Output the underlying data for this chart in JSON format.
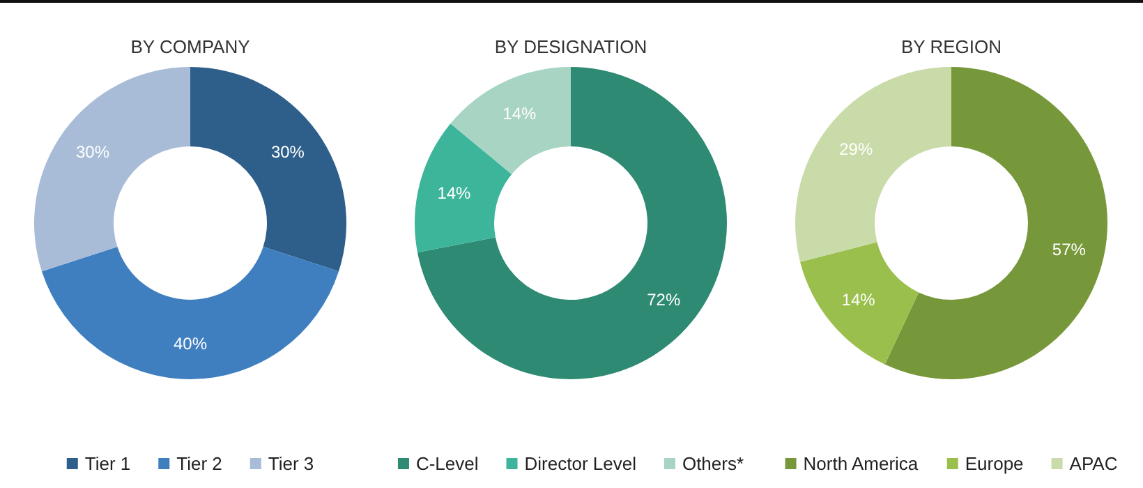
{
  "chart_data": [
    {
      "type": "donut",
      "title": "BY COMPANY",
      "categories": [
        "Tier 1",
        "Tier 2",
        "Tier 3"
      ],
      "values": [
        30,
        40,
        30
      ],
      "colors": [
        "#2e5f8a",
        "#3f7fc0",
        "#a8bcd8"
      ],
      "value_labels": [
        "30%",
        "40%",
        "30%"
      ],
      "legend": "bottom"
    },
    {
      "type": "donut",
      "title": "BY DESIGNATION",
      "categories": [
        "C-Level",
        "Director Level",
        "Others*"
      ],
      "values": [
        72,
        14,
        14
      ],
      "colors": [
        "#2e8a72",
        "#3cb59a",
        "#a8d4c4"
      ],
      "value_labels": [
        "72%",
        "14%",
        "14%"
      ],
      "legend": "bottom"
    },
    {
      "type": "donut",
      "title": "BY REGION",
      "categories": [
        "North America",
        "Europe",
        "APAC"
      ],
      "values": [
        57,
        14,
        29
      ],
      "colors": [
        "#76973a",
        "#9bbf4d",
        "#c9dba8"
      ],
      "value_labels": [
        "57%",
        "14%",
        "29%"
      ],
      "legend": "bottom"
    }
  ]
}
